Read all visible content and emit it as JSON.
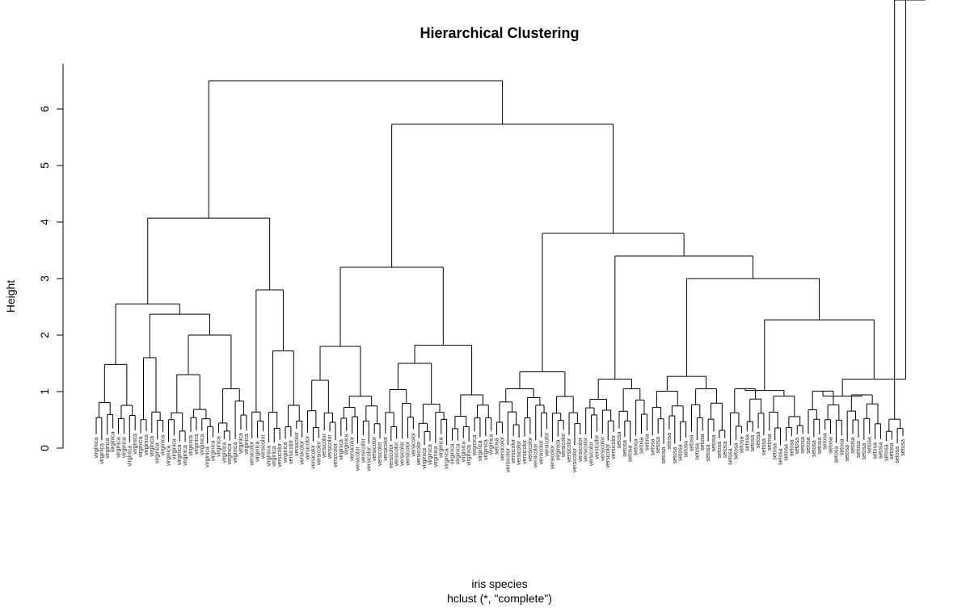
{
  "chart_data": {
    "type": "dendrogram",
    "title": "Hierarchical Clustering",
    "xlabel": "iris species",
    "sublabel": "hclust (*, \"complete\")",
    "ylabel": "Height",
    "ylim": [
      0,
      6.8
    ],
    "yticks": [
      "0",
      "1",
      "2",
      "3",
      "4",
      "5",
      "6"
    ],
    "leaves": [
      "virginica",
      "virginica",
      "virginica",
      "virginica",
      "virginica",
      "virginica",
      "virginica",
      "virginica",
      "virginica",
      "virginica",
      "virginica",
      "virginica",
      "virginica",
      "virginica",
      "virginica",
      "virginica",
      "virginica",
      "virginica",
      "virginica",
      "virginica",
      "virginica",
      "virginica",
      "virginica",
      "virginica",
      "virginica",
      "virginica",
      "virginica",
      "virginica",
      "versicolor",
      "virginica",
      "versicolor",
      "virginica",
      "virginica",
      "versicolor",
      "virginica",
      "versicolor",
      "versicolor",
      "versicolor",
      "versicolor",
      "versicolor",
      "versicolor",
      "versicolor",
      "versicolor",
      "versicolor",
      "virginica",
      "virginica",
      "versicolor",
      "versicolor",
      "versicolor",
      "versicolor",
      "versicolor",
      "versicolor",
      "versicolor",
      "versicolor",
      "versicolor",
      "versicolor",
      "versicolor",
      "versicolor",
      "versicolor",
      "virginica",
      "virginica",
      "virginica",
      "virginica",
      "virginica",
      "virginica",
      "virginica",
      "virginica",
      "virginica",
      "virginica",
      "virginica",
      "virginica",
      "virginica",
      "setosa",
      "versicolor",
      "versicolor",
      "versicolor",
      "versicolor",
      "versicolor",
      "versicolor",
      "versicolor",
      "versicolor",
      "versicolor",
      "versicolor",
      "virginica",
      "versicolor",
      "versicolor",
      "versicolor",
      "versicolor",
      "versicolor",
      "versicolor",
      "versicolor",
      "versicolor",
      "versicolor",
      "versicolor",
      "setosa",
      "setosa",
      "setosa",
      "setosa",
      "setosa",
      "setosa",
      "setosa",
      "setosa",
      "setosa",
      "setosa",
      "setosa",
      "setosa",
      "setosa",
      "setosa",
      "setosa",
      "setosa",
      "setosa",
      "setosa",
      "setosa",
      "setosa",
      "setosa",
      "setosa",
      "setosa",
      "setosa",
      "setosa",
      "setosa",
      "setosa",
      "setosa",
      "setosa",
      "setosa",
      "setosa",
      "setosa",
      "setosa",
      "setosa",
      "setosa",
      "setosa",
      "setosa",
      "setosa",
      "setosa",
      "setosa",
      "setosa",
      "setosa",
      "setosa",
      "setosa",
      "setosa",
      "setosa",
      "setosa",
      "setosa",
      "setosa",
      "setosa",
      "setosa",
      "setosa"
    ],
    "merges": [
      {
        "left": [
          0,
          8
        ],
        "right": [
          8,
          28
        ],
        "height": 2.55
      },
      {
        "left": [
          8,
          13
        ],
        "right": [
          13,
          28
        ],
        "height": 2.37
      },
      {
        "left": [
          8,
          10
        ],
        "right": [
          10,
          13
        ],
        "height": 1.6
      },
      {
        "left": [
          13,
          17
        ],
        "right": [
          17,
          28
        ],
        "height": 2.0
      },
      {
        "left": [
          17,
          22
        ],
        "right": [
          22,
          28
        ],
        "height": 1.47
      },
      {
        "left": [
          0,
          8
        ],
        "right": [
          28,
          38
        ],
        "height": 4.07
      },
      {
        "left": [
          28,
          31
        ],
        "right": [
          31,
          38
        ],
        "height": 2.8
      },
      {
        "left": [
          31,
          34
        ],
        "right": [
          34,
          38
        ],
        "height": 1.72
      },
      {
        "left": [
          44,
          52
        ],
        "right": [
          52,
          72
        ],
        "height": 3.2
      },
      {
        "left": [
          52,
          58
        ],
        "right": [
          58,
          72
        ],
        "height": 1.82
      },
      {
        "left": [
          58,
          64
        ],
        "right": [
          64,
          72
        ],
        "height": 1.5
      },
      {
        "left": [
          72,
          82
        ],
        "right": [
          82,
          107
        ],
        "height": 3.8
      },
      {
        "left": [
          82,
          94
        ],
        "right": [
          94,
          107
        ],
        "height": 2.27
      },
      {
        "left": [
          82,
          88
        ],
        "right": [
          88,
          94
        ],
        "height": 1.2
      },
      {
        "left": [
          94,
          100
        ],
        "right": [
          100,
          107
        ],
        "height": 1.27
      },
      {
        "left": [
          44,
          72
        ],
        "right": [
          72,
          107
        ],
        "height": 5.73
      },
      {
        "left": [
          0,
          38
        ],
        "right": [
          44,
          107
        ],
        "height": 6.5
      }
    ]
  }
}
